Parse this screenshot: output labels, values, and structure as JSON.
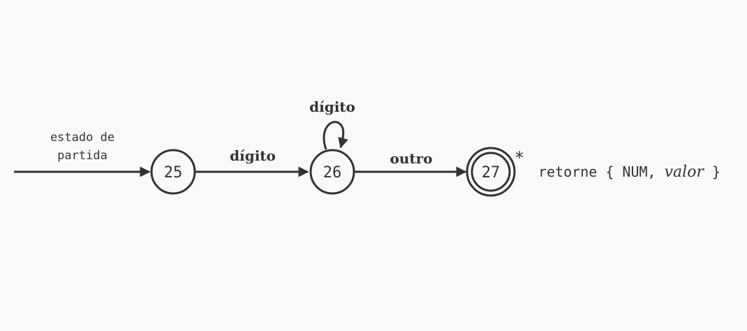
{
  "diagram": {
    "start_label_line1": "estado de",
    "start_label_line2": "partida",
    "states": [
      {
        "id": "25",
        "accepting": false
      },
      {
        "id": "26",
        "accepting": false
      },
      {
        "id": "27",
        "accepting": true
      }
    ],
    "edge_25_26_label": "dígito",
    "self_loop_26_label": "dígito",
    "edge_26_27_label": "outro",
    "retract_marker": "*",
    "action_prefix": "retorne { NUM, ",
    "action_value": "valor",
    "action_suffix": " }"
  },
  "colors": {
    "background": "#f9f9f9",
    "stroke": "#333333"
  }
}
